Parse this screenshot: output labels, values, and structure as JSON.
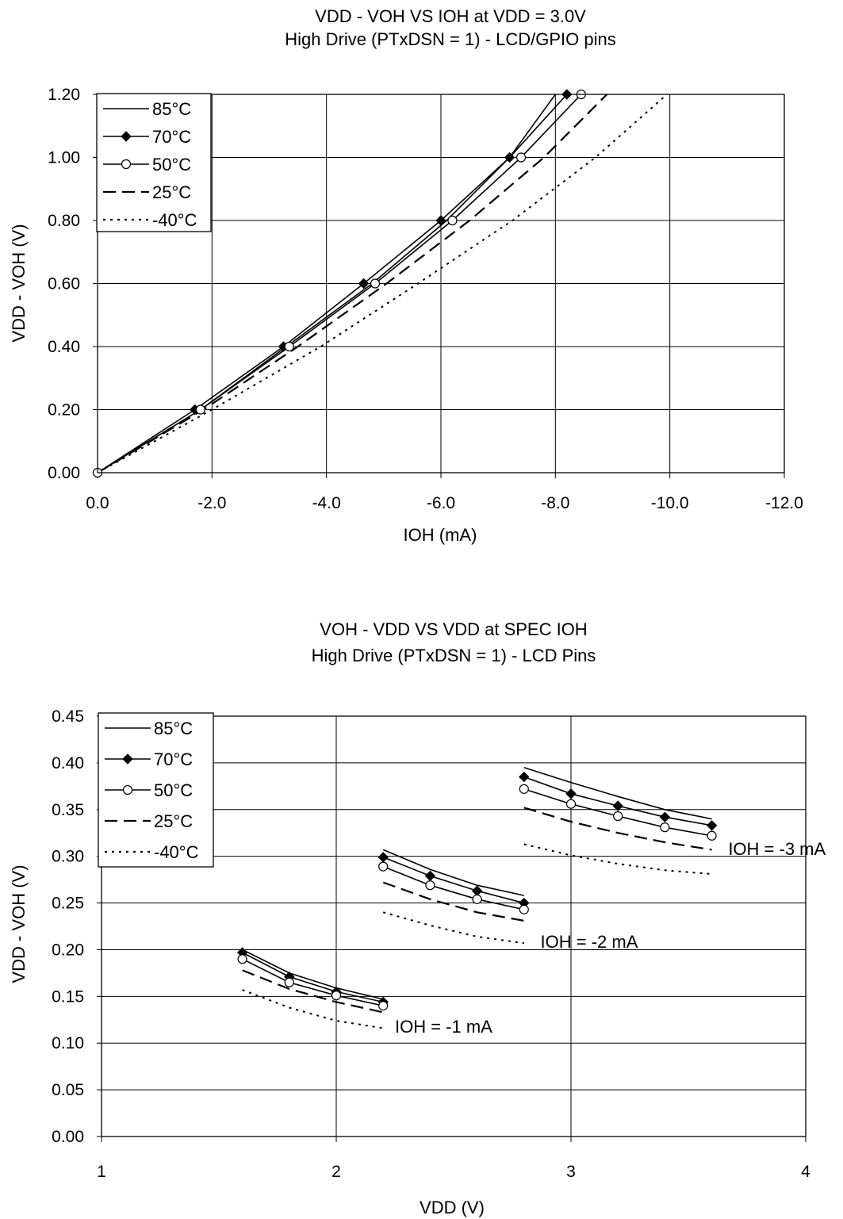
{
  "chart_data": [
    {
      "type": "line",
      "title": "VDD - VOH VS IOH at VDD = 3.0V",
      "subtitle": "High Drive (PTxDSN = 1) - LCD/GPIO pins",
      "xlabel": "IOH (mA)",
      "ylabel": "VDD - VOH (V)",
      "xlim": [
        0,
        -12
      ],
      "ylim": [
        0,
        1.2
      ],
      "x_ticks": [
        0,
        -2,
        -4,
        -6,
        -8,
        -10,
        -12
      ],
      "x_tick_labels": [
        "0.0",
        "-2.0",
        "-4.0",
        "-6.0",
        "-8.0",
        "-10.0",
        "-12.0"
      ],
      "y_ticks": [
        0,
        0.2,
        0.4,
        0.6,
        0.8,
        1.0,
        1.2
      ],
      "y_tick_labels": [
        "0.00",
        "0.20",
        "0.40",
        "0.60",
        "0.80",
        "1.00",
        "1.20"
      ],
      "grid": true,
      "legend_position": "top-left",
      "series": [
        {
          "name": "85°C",
          "style": "solid",
          "marker": "none",
          "x": [
            0,
            -1.8,
            -3.3,
            -4.8,
            -6.1,
            -7.2,
            -8.0
          ],
          "y": [
            0,
            0.2,
            0.4,
            0.6,
            0.8,
            1.0,
            1.2
          ]
        },
        {
          "name": "70°C",
          "style": "solid",
          "marker": "diamond",
          "x": [
            0,
            -1.7,
            -3.25,
            -4.65,
            -6.0,
            -7.2,
            -8.2
          ],
          "y": [
            0,
            0.2,
            0.4,
            0.6,
            0.8,
            1.0,
            1.2
          ]
        },
        {
          "name": "50°C",
          "style": "solid",
          "marker": "circle",
          "x": [
            0,
            -1.8,
            -3.35,
            -4.85,
            -6.2,
            -7.4,
            -8.45
          ],
          "y": [
            0,
            0.2,
            0.4,
            0.6,
            0.8,
            1.0,
            1.2
          ]
        },
        {
          "name": "25°C",
          "style": "dashed",
          "marker": "none",
          "x": [
            0,
            -1.85,
            -3.5,
            -5.05,
            -6.5,
            -7.8,
            -8.9
          ],
          "y": [
            0,
            0.2,
            0.4,
            0.6,
            0.8,
            1.0,
            1.2
          ]
        },
        {
          "name": "-40°C",
          "style": "dotted",
          "marker": "none",
          "x": [
            0,
            -2.0,
            -3.9,
            -5.6,
            -7.25,
            -8.7,
            -9.95
          ],
          "y": [
            0,
            0.2,
            0.4,
            0.6,
            0.8,
            1.0,
            1.2
          ]
        }
      ]
    },
    {
      "type": "line",
      "title": "VOH - VDD VS VDD at SPEC IOH",
      "subtitle": "High Drive (PTxDSN = 1) - LCD Pins",
      "xlabel": "VDD (V)",
      "ylabel": "VDD - VOH (V)",
      "xlim": [
        1,
        4
      ],
      "ylim": [
        0,
        0.45
      ],
      "x_ticks": [
        1,
        2,
        3,
        4
      ],
      "x_tick_labels": [
        "1",
        "2",
        "3",
        "4"
      ],
      "y_ticks": [
        0,
        0.05,
        0.1,
        0.15,
        0.2,
        0.25,
        0.3,
        0.35,
        0.4,
        0.45
      ],
      "y_tick_labels": [
        "0.00",
        "0.05",
        "0.10",
        "0.15",
        "0.20",
        "0.25",
        "0.30",
        "0.35",
        "0.40",
        "0.45"
      ],
      "grid": true,
      "legend_position": "top-left",
      "annotations": [
        {
          "text": "IOH = -1 mA",
          "x": 2.25,
          "y": 0.118
        },
        {
          "text": "IOH = -2 mA",
          "x": 2.87,
          "y": 0.209
        },
        {
          "text": "IOH = -3 mA",
          "x": 3.67,
          "y": 0.308
        }
      ],
      "series": [
        {
          "name": "85°C",
          "style": "solid",
          "marker": "none",
          "segments": [
            {
              "x": [
                1.6,
                1.8,
                2.0,
                2.2
              ],
              "y": [
                0.2,
                0.175,
                0.159,
                0.147
              ]
            },
            {
              "x": [
                2.2,
                2.4,
                2.6,
                2.8
              ],
              "y": [
                0.307,
                0.286,
                0.269,
                0.258
              ]
            },
            {
              "x": [
                2.8,
                3.0,
                3.2,
                3.4,
                3.6
              ],
              "y": [
                0.395,
                0.379,
                0.364,
                0.35,
                0.34
              ]
            }
          ]
        },
        {
          "name": "70°C",
          "style": "solid",
          "marker": "diamond",
          "segments": [
            {
              "x": [
                1.6,
                1.8,
                2.0,
                2.2
              ],
              "y": [
                0.197,
                0.171,
                0.155,
                0.144
              ]
            },
            {
              "x": [
                2.2,
                2.4,
                2.6,
                2.8
              ],
              "y": [
                0.299,
                0.279,
                0.263,
                0.25
              ]
            },
            {
              "x": [
                2.8,
                3.0,
                3.2,
                3.4,
                3.6
              ],
              "y": [
                0.385,
                0.367,
                0.354,
                0.342,
                0.333
              ]
            }
          ]
        },
        {
          "name": "50°C",
          "style": "solid",
          "marker": "circle",
          "segments": [
            {
              "x": [
                1.6,
                1.8,
                2.0,
                2.2
              ],
              "y": [
                0.19,
                0.165,
                0.151,
                0.14
              ]
            },
            {
              "x": [
                2.2,
                2.4,
                2.6,
                2.8
              ],
              "y": [
                0.289,
                0.269,
                0.254,
                0.243
              ]
            },
            {
              "x": [
                2.8,
                3.0,
                3.2,
                3.4,
                3.6
              ],
              "y": [
                0.372,
                0.356,
                0.343,
                0.331,
                0.322
              ]
            }
          ]
        },
        {
          "name": "25°C",
          "style": "dashed",
          "marker": "none",
          "segments": [
            {
              "x": [
                1.6,
                1.8,
                2.0,
                2.2
              ],
              "y": [
                0.178,
                0.158,
                0.144,
                0.133
              ]
            },
            {
              "x": [
                2.2,
                2.4,
                2.6,
                2.8
              ],
              "y": [
                0.272,
                0.254,
                0.24,
                0.231
              ]
            },
            {
              "x": [
                2.8,
                3.0,
                3.2,
                3.4,
                3.6
              ],
              "y": [
                0.352,
                0.337,
                0.325,
                0.315,
                0.307
              ]
            }
          ]
        },
        {
          "name": "-40°C",
          "style": "dotted",
          "marker": "none",
          "segments": [
            {
              "x": [
                1.6,
                1.8,
                2.0,
                2.2
              ],
              "y": [
                0.157,
                0.138,
                0.124,
                0.116
              ]
            },
            {
              "x": [
                2.2,
                2.4,
                2.6,
                2.8
              ],
              "y": [
                0.24,
                0.226,
                0.214,
                0.207
              ]
            },
            {
              "x": [
                2.8,
                3.0,
                3.2,
                3.4,
                3.6
              ],
              "y": [
                0.313,
                0.301,
                0.292,
                0.285,
                0.281
              ]
            }
          ]
        }
      ]
    }
  ]
}
